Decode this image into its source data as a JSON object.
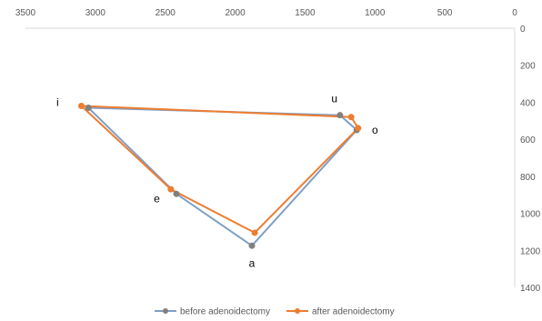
{
  "chart_data": {
    "type": "scatter",
    "title": "",
    "xlabel": "",
    "ylabel": "",
    "x_axis": {
      "min": 0,
      "max": 3500,
      "reversed": true,
      "position": "top",
      "ticks": [
        3500,
        3000,
        2500,
        2000,
        1500,
        1000,
        500,
        0
      ]
    },
    "y_axis": {
      "min": 0,
      "max": 1400,
      "reversed": true,
      "position": "right",
      "ticks": [
        0,
        200,
        400,
        600,
        800,
        1000,
        1200,
        1400
      ]
    },
    "grid": false,
    "legend_position": "bottom",
    "vowel_labels": [
      {
        "text": "i",
        "x": 3270,
        "y": 420
      },
      {
        "text": "u",
        "x": 1290,
        "y": 400
      },
      {
        "text": "o",
        "x": 1000,
        "y": 570
      },
      {
        "text": "e",
        "x": 2560,
        "y": 940
      },
      {
        "text": "a",
        "x": 1880,
        "y": 1290
      }
    ],
    "series": [
      {
        "name": "before adenoidectomy",
        "color": "#7f9fc7",
        "marker_color": "#808080",
        "points": [
          {
            "vowel": "i",
            "x": 3050,
            "y": 430
          },
          {
            "vowel": "u",
            "x": 1250,
            "y": 470
          },
          {
            "vowel": "o",
            "x": 1130,
            "y": 550
          },
          {
            "vowel": "a",
            "x": 1880,
            "y": 1175
          },
          {
            "vowel": "e",
            "x": 2420,
            "y": 895
          },
          {
            "vowel": "i",
            "x": 3050,
            "y": 430
          }
        ]
      },
      {
        "name": "after adenoidectomy",
        "color": "#ed7d31",
        "marker_color": "#ed7d31",
        "points": [
          {
            "vowel": "i",
            "x": 3100,
            "y": 420
          },
          {
            "vowel": "u",
            "x": 1170,
            "y": 480
          },
          {
            "vowel": "o",
            "x": 1120,
            "y": 540
          },
          {
            "vowel": "a",
            "x": 1860,
            "y": 1105
          },
          {
            "vowel": "e",
            "x": 2460,
            "y": 870
          },
          {
            "vowel": "i",
            "x": 3100,
            "y": 420
          }
        ]
      }
    ]
  }
}
